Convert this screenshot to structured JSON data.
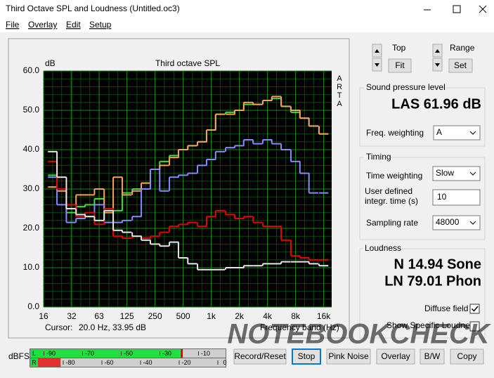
{
  "window": {
    "title": "Third Octave SPL and Loudness (Untitled.oc3)"
  },
  "menu": [
    "File",
    "Overlay",
    "Edit",
    "Setup"
  ],
  "chart_data": {
    "type": "line",
    "title": "Third octave SPL",
    "y_label": "dB",
    "x_label": "Frequency band (Hz)",
    "side_label": "ARTA",
    "cursor_label": "Cursor:",
    "cursor_value": "20.0 Hz, 33.95 dB",
    "x_scale": "log",
    "step": true,
    "grid": true,
    "xlim": [
      16,
      19500
    ],
    "ylim": [
      0,
      60
    ],
    "xticks": [
      16,
      32,
      63,
      125,
      250,
      500,
      {
        "value": 1000,
        "label": "1k"
      },
      {
        "value": 2000,
        "label": "2k"
      },
      {
        "value": 4000,
        "label": "4k"
      },
      {
        "value": 8000,
        "label": "8k"
      },
      {
        "value": 16000,
        "label": "16k"
      }
    ],
    "yticks": [
      {
        "value": 0,
        "label": "0.0"
      },
      {
        "value": 10,
        "label": "10.0"
      },
      {
        "value": 20,
        "label": "20.0"
      },
      {
        "value": 30,
        "label": "30.0"
      },
      {
        "value": 40,
        "label": "40.0"
      },
      {
        "value": 50,
        "label": "50.0"
      },
      {
        "value": 60,
        "label": "60.0"
      }
    ],
    "x": [
      20,
      25,
      31.5,
      40,
      50,
      63,
      80,
      100,
      125,
      160,
      200,
      250,
      315,
      400,
      500,
      630,
      800,
      1000,
      1250,
      1600,
      2000,
      2500,
      3150,
      4000,
      5000,
      6300,
      8000,
      10000,
      12500,
      16000
    ],
    "series": [
      {
        "color": "#3ee03e",
        "values": [
          33.5,
          30,
          24,
          25.5,
          26,
          27.5,
          25,
          24.5,
          29,
          30,
          31.5,
          35,
          37,
          38.5,
          40,
          41,
          42,
          45,
          49,
          49.5,
          50,
          51.5,
          51.5,
          52.5,
          53,
          51,
          49.5,
          48,
          46,
          44
        ]
      },
      {
        "color": "#f7a060",
        "values": [
          30.5,
          29.5,
          25,
          28.5,
          28.5,
          30,
          24,
          33,
          28.5,
          29.5,
          31.5,
          35,
          36,
          38,
          40,
          41,
          42,
          45,
          49,
          49,
          50,
          52,
          51.5,
          52.5,
          53.5,
          51,
          50,
          48,
          46,
          44
        ]
      },
      {
        "color": "#8a8aff",
        "values": [
          33,
          26,
          21.5,
          22.5,
          23,
          26,
          21.5,
          21.5,
          22,
          23,
          30,
          35,
          29.5,
          33,
          33.5,
          34,
          36,
          37.5,
          39.5,
          40.5,
          41,
          42.5,
          41.5,
          42.5,
          41.5,
          40,
          37,
          34,
          29,
          29
        ]
      },
      {
        "color": "#e80000",
        "values": [
          37,
          30,
          26,
          23,
          24,
          21,
          25,
          18,
          17.5,
          18,
          17.5,
          18,
          19,
          20.5,
          21,
          21.5,
          20.5,
          23,
          24.5,
          23.5,
          22.5,
          23,
          21.5,
          20.5,
          20.5,
          17,
          13,
          12.5,
          12,
          12
        ]
      },
      {
        "color": "#e8e8e8",
        "values": [
          39.5,
          33,
          25,
          23.5,
          23,
          22,
          24.5,
          19.5,
          19,
          18,
          17,
          16,
          15.5,
          16.5,
          12.5,
          11,
          9.5,
          9.5,
          9.5,
          10,
          10,
          10.5,
          10.5,
          11,
          11,
          11.5,
          11.5,
          11.5,
          11,
          10.5
        ]
      }
    ]
  },
  "view": {
    "top": "Top",
    "fit": "Fit",
    "range": "Range",
    "set": "Set"
  },
  "spl": {
    "title": "Sound pressure level",
    "reading": "LAS 61.96 dB",
    "freq_weighting_label": "Freq. weighting",
    "freq_weighting": "A"
  },
  "timing": {
    "title": "Timing",
    "time_weighting_label": "Time weighting",
    "time_weighting": "Slow",
    "integr_label": "User defined integr. time (s)",
    "integr_time": "10",
    "sampling_rate_label": "Sampling rate",
    "sampling_rate": "48000"
  },
  "loudness": {
    "title": "Loudness",
    "n": "N 14.94 Sone",
    "ln": "LN 79.01 Phon",
    "diffuse_field": "Diffuse field",
    "diffuse_field_checked": true,
    "show_specific": "Show Specific Loudness"
  },
  "meters": {
    "label": "dBFS",
    "lim": [
      -100,
      0
    ],
    "channels": [
      {
        "name": "L",
        "color": "#22dd44",
        "level": -23,
        "peak": -22.5,
        "ticks": [
          -90,
          -70,
          -50,
          -30,
          -10
        ]
      },
      {
        "name": "R",
        "color": "#e03030",
        "level": -85,
        "ticks": [
          -80,
          -60,
          -40,
          -20,
          0
        ]
      }
    ]
  },
  "buttons": [
    "Record/Reset",
    "Stop",
    "Pink Noise",
    "Overlay",
    "B/W",
    "Copy"
  ],
  "watermark": "NOTEBOOKCHECK"
}
